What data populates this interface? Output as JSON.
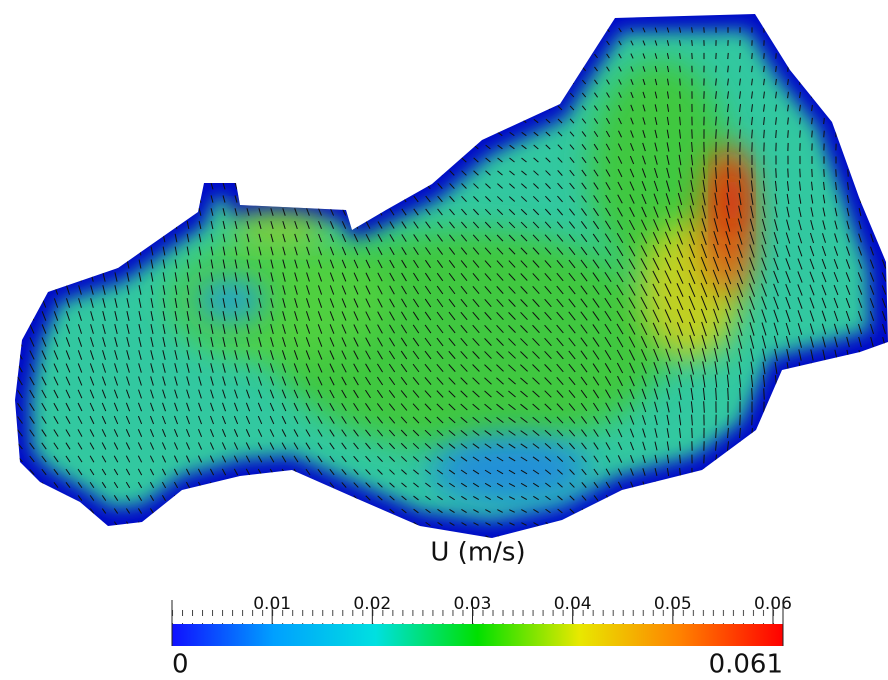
{
  "chart_data": {
    "type": "heatmap",
    "colorbar": {
      "label": "U (m/s)",
      "lim": [
        0,
        0.061
      ],
      "ticks": [
        0.01,
        0.02,
        0.03,
        0.04,
        0.05,
        0.06
      ],
      "colormap": [
        "#1010ff",
        "#00a0ff",
        "#00e0e0",
        "#00e000",
        "#e8e800",
        "#ff8000",
        "#ff0000"
      ]
    }
  }
}
